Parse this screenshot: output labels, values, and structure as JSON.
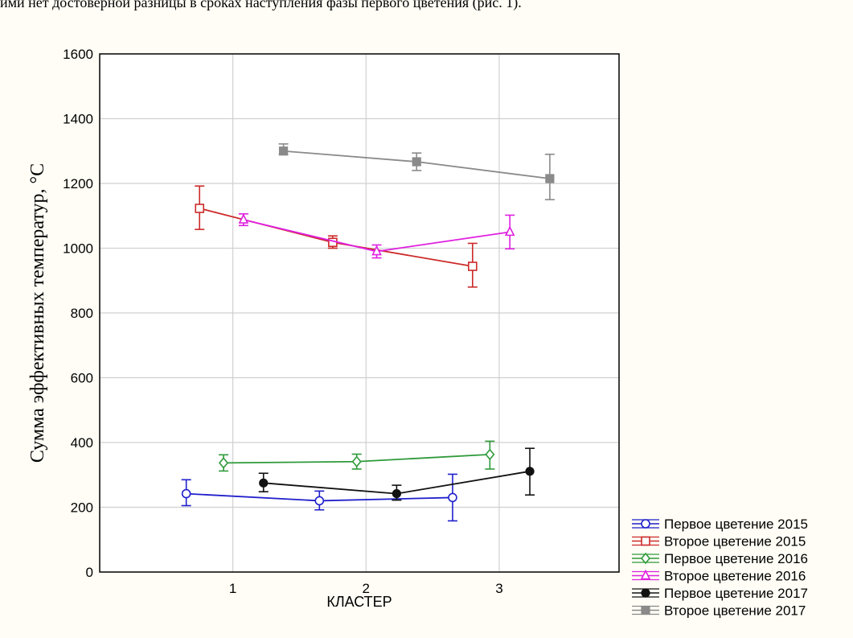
{
  "header_text": "ими нет достоверной разницы в сроках наступления фазы первого цветения (рис. 1).",
  "chart_data": {
    "type": "line",
    "title": "",
    "xlabel": "КЛАСТЕР",
    "ylabel": "Сумма эффективных температур, °C",
    "xlim": [
      0,
      3.9
    ],
    "ylim": [
      0,
      1600
    ],
    "xticks": [
      1,
      2,
      3
    ],
    "yticks": [
      0,
      200,
      400,
      600,
      800,
      1000,
      1200,
      1400,
      1600
    ],
    "grid": true,
    "legend_position": "bottom-right, outside plot",
    "series": [
      {
        "name": "Первое цветение 2015",
        "color": "#1f1fcc",
        "marker": "circle-open",
        "x": [
          0.65,
          1.65,
          2.65
        ],
        "y": [
          242,
          220,
          230
        ],
        "err_low": [
          205,
          192,
          158
        ],
        "err_high": [
          285,
          250,
          302
        ]
      },
      {
        "name": "Второе цветение 2015",
        "color": "#cc2a2a",
        "marker": "square-open",
        "x": [
          0.75,
          1.75,
          2.8
        ],
        "y": [
          1123,
          1018,
          944
        ],
        "err_low": [
          1058,
          1000,
          880
        ],
        "err_high": [
          1192,
          1038,
          1015
        ]
      },
      {
        "name": "Первое цветение 2016",
        "color": "#2e9a3a",
        "marker": "diamond-open",
        "x": [
          0.93,
          1.93,
          2.93
        ],
        "y": [
          337,
          341,
          363
        ],
        "err_low": [
          312,
          318,
          318
        ],
        "err_high": [
          362,
          364,
          404
        ]
      },
      {
        "name": "Второе цветение 2016",
        "color": "#e020e0",
        "marker": "triangle-open",
        "x": [
          1.08,
          2.08,
          3.08
        ],
        "y": [
          1088,
          990,
          1050
        ],
        "err_low": [
          1070,
          970,
          998
        ],
        "err_high": [
          1106,
          1010,
          1102
        ]
      },
      {
        "name": "Первое цветение 2017",
        "color": "#111111",
        "marker": "circle-filled",
        "x": [
          1.23,
          2.23,
          3.23
        ],
        "y": [
          275,
          242,
          311
        ],
        "err_low": [
          248,
          222,
          238
        ],
        "err_high": [
          305,
          268,
          382
        ]
      },
      {
        "name": "Второе цветение 2017",
        "color": "#8a8a8a",
        "marker": "square-filled",
        "x": [
          1.38,
          2.38,
          3.38
        ],
        "y": [
          1300,
          1267,
          1215
        ],
        "err_low": [
          1290,
          1240,
          1150
        ],
        "err_high": [
          1322,
          1294,
          1290
        ]
      }
    ]
  }
}
